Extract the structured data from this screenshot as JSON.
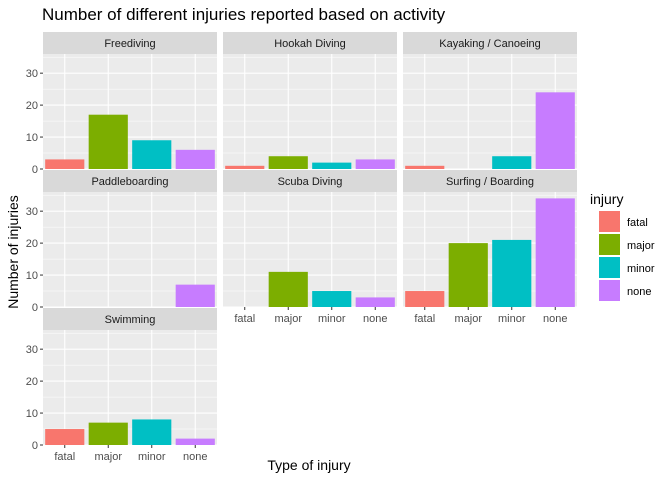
{
  "chart_data": {
    "type": "bar",
    "title": "Number of different injuries reported based on activity",
    "xlabel": "Type of injury",
    "ylabel": "Number of injuries",
    "categories": [
      "fatal",
      "major",
      "minor",
      "none"
    ],
    "ylim": [
      0,
      36
    ],
    "yticks": [
      0,
      10,
      20,
      30
    ],
    "grid": true,
    "legend": {
      "title": "injury",
      "placement": "right",
      "entries": [
        "fatal",
        "major",
        "minor",
        "none"
      ]
    },
    "colors": {
      "fatal": "#F8766D",
      "major": "#7CAE00",
      "minor": "#00BFC4",
      "none": "#C77CFF",
      "panel_bg": "#EBEBEB",
      "strip_bg": "#D9D9D9",
      "grid": "#FFFFFF"
    },
    "facets": [
      {
        "name": "Freediving",
        "values": [
          3,
          17,
          9,
          6
        ]
      },
      {
        "name": "Hookah Diving",
        "values": [
          1,
          4,
          2,
          3
        ]
      },
      {
        "name": "Kayaking / Canoeing",
        "values": [
          1,
          0,
          4,
          24
        ]
      },
      {
        "name": "Paddleboarding",
        "values": [
          0,
          0,
          0,
          7
        ]
      },
      {
        "name": "Scuba Diving",
        "values": [
          0,
          11,
          5,
          3
        ]
      },
      {
        "name": "Surfing / Boarding",
        "values": [
          5,
          20,
          21,
          34
        ]
      },
      {
        "name": "Swimming",
        "values": [
          5,
          7,
          8,
          2
        ]
      }
    ]
  }
}
